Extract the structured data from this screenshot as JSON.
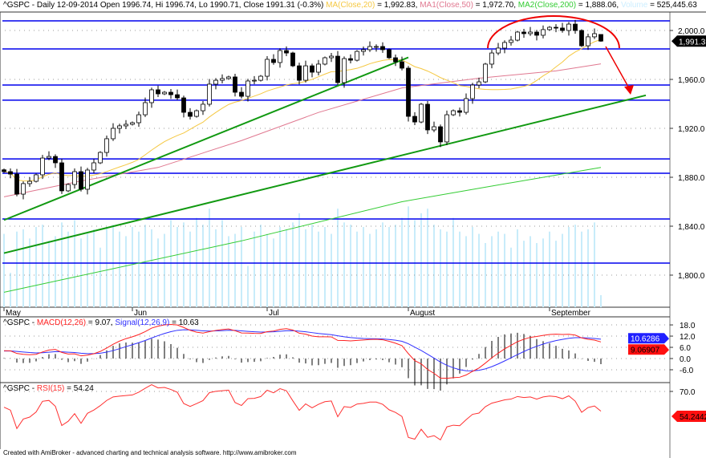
{
  "header": {
    "symbol": "^GSPC",
    "summary": "^GSPC - Daily 12-09-2014 Open 1996.74, Hi 1996.74, Lo 1990.71, Close 1991.31 (-0.3%)",
    "ma20_label": "MA(Close,20)",
    "ma20_value": " = 1,992.83, ",
    "ma50_label": "MA1(Close,50)",
    "ma50_value": " = 1,972.70, ",
    "ma200_label": "MA2(Close,200)",
    "ma200_value": " = 1,888.06, ",
    "volume_label": "Volume",
    "volume_value": " = 525,445.63"
  },
  "macd_header": {
    "prefix": "^GSPC - ",
    "macd_label": "MACD(12,26)",
    "macd_value": " = 9.07, ",
    "signal_label": "Signal(12,26,9)",
    "signal_value": " = 10.63"
  },
  "rsi_header": {
    "prefix": "^GSPC - ",
    "rsi_label": "RSI(15)",
    "rsi_value": " = 54.24"
  },
  "footer": "Created with AmiBroker - advanced charting and technical analysis software. http://www.amibroker.com",
  "colors": {
    "ma20": "#f5c842",
    "ma50": "#e07890",
    "ma200": "#33cc33",
    "volume": "#c8ecfa",
    "support_lines": "#0000ee",
    "trendlines": "#119911",
    "macd": "#ff2020",
    "signal": "#3030ff",
    "rsi": "#ff3030",
    "annotation": "#ee0000"
  },
  "chart_data": {
    "type": "candlestick",
    "price_axis": {
      "ticks": [
        "2,000.0",
        "1,960.0",
        "1,920.0",
        "1,880.0",
        "1,840.0",
        "1,800.0"
      ],
      "tick_values": [
        2000,
        1960,
        1920,
        1880,
        1840,
        1800
      ],
      "last_price_badge": "1,991.31"
    },
    "date_axis": {
      "labels": [
        "May",
        "Jun",
        "Jul",
        "August",
        "September"
      ],
      "label_bar_index": [
        0,
        20,
        41,
        63,
        85
      ]
    },
    "closes": [
      1884.6,
      1882.6,
      1866.2,
      1874.8,
      1876.7,
      1882.0,
      1895.7,
      1897.0,
      1891.8,
      1868.9,
      1874.1,
      1884.6,
      1870.2,
      1885.9,
      1891.8,
      1900.3,
      1911.5,
      1920.0,
      1922.0,
      1923.3,
      1924.6,
      1931.1,
      1941.0,
      1951.5,
      1948.2,
      1949.5,
      1947.5,
      1944.9,
      1933.1,
      1929.8,
      1934.4,
      1939.7,
      1956.1,
      1959.3,
      1960.7,
      1962.0,
      1949.5,
      1946.2,
      1958.7,
      1959.3,
      1962.6,
      1976.4,
      1973.8,
      1983.6,
      1981.6,
      1971.1,
      1959.3,
      1971.1,
      1965.9,
      1972.5,
      1977.7,
      1979.0,
      1957.4,
      1977.0,
      1975.7,
      1982.9,
      1984.3,
      1986.9,
      1986.9,
      1984.3,
      1977.7,
      1974.4,
      1969.2,
      1929.8,
      1925.2,
      1939.7,
      1918.7,
      1921.3,
      1908.9,
      1931.1,
      1934.4,
      1933.1,
      1944.3,
      1955.4,
      1958.0,
      1972.5,
      1981.6,
      1985.6,
      1990.2,
      1992.1,
      1998.7,
      1997.4,
      1998.7,
      1996.1,
      2000.7,
      2002.6,
      2002.0,
      2000.0,
      2005.2,
      2000.0,
      1987.5,
      1994.8,
      1997.4,
      1991.31
    ],
    "last_bar": {
      "open": 1996.74,
      "high": 1996.74,
      "low": 1990.71,
      "close": 1991.31
    },
    "volume": [
      3200000,
      1500000,
      3300000,
      3400000,
      3000000,
      3500000,
      3600000,
      2900000,
      3100000,
      3700000,
      3300000,
      3800000,
      3000000,
      3200000,
      3400000,
      2600000,
      3500000,
      3600000,
      3300000,
      3100000,
      3500000,
      3300000,
      3600000,
      3400000,
      3000000,
      3200000,
      3800000,
      3500000,
      3700000,
      3300000,
      3900000,
      3600000,
      4300000,
      3400000,
      3800000,
      3100000,
      3200000,
      3500000,
      1800000,
      3300000,
      3600000,
      3200000,
      3000000,
      3500000,
      3400000,
      3700000,
      4100000,
      3400000,
      3600000,
      3300000,
      3500000,
      3200000,
      4300000,
      3700000,
      3600000,
      3300000,
      3500000,
      3200000,
      3400000,
      3700000,
      3500000,
      3600000,
      3900000,
      4400000,
      3800000,
      4100000,
      4300000,
      3600000,
      3400000,
      3300000,
      3900000,
      3300000,
      3100000,
      3500000,
      3200000,
      2800000,
      3100000,
      3300000,
      3200000,
      2600000,
      3400000,
      2900000,
      3100000,
      2800000,
      3000000,
      3300000,
      2900000,
      3200000,
      3500000,
      3600000,
      3300000,
      3400000,
      3700000,
      525445.63
    ],
    "ma50_knots": [
      [
        0,
        1864
      ],
      [
        12,
        1877
      ],
      [
        24,
        1888
      ],
      [
        37,
        1910
      ],
      [
        49,
        1933
      ],
      [
        62,
        1953
      ],
      [
        74,
        1961
      ],
      [
        86,
        1967
      ],
      [
        93,
        1972.7
      ]
    ],
    "ma200_knots": [
      [
        0,
        1786
      ],
      [
        37,
        1828
      ],
      [
        62,
        1860
      ],
      [
        74,
        1871
      ],
      [
        93,
        1888.06
      ]
    ],
    "horizontal_levels": [
      2007.9,
      1984.9,
      1955.4,
      1943.0,
      1895.0,
      1883.3,
      1845.9,
      1809.8
    ],
    "trendlines": [
      {
        "from": [
          0,
          1845
        ],
        "to": [
          63,
          1978
        ]
      },
      {
        "from": [
          0,
          1818
        ],
        "to": [
          100,
          1947
        ]
      }
    ],
    "macd_axis": {
      "ticks": [
        "18.0",
        "12.0",
        "6.0",
        "0.0",
        "-6.0"
      ],
      "tick_values": [
        18,
        12,
        6,
        0,
        -6
      ],
      "signal_badge": "10.6286",
      "macd_badge": "9.06907"
    },
    "rsi_axis": {
      "ticks": [
        "70.0"
      ],
      "tick_values": [
        70
      ],
      "rsi_badge": "54.2442"
    }
  }
}
